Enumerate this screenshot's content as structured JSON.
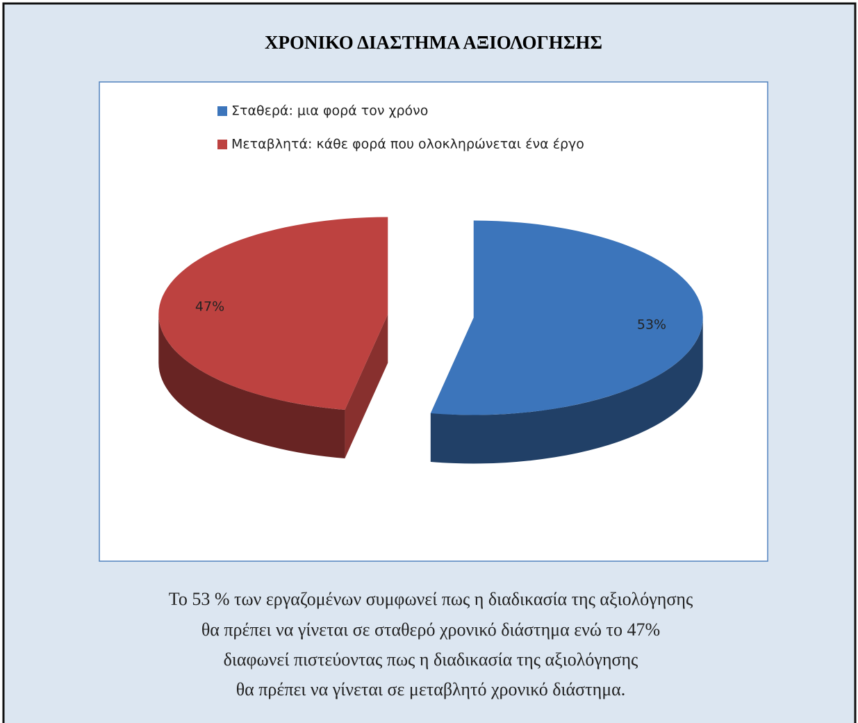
{
  "chart_data": {
    "type": "pie",
    "title": "ΧΡΟΝΙΚΟ ΔΙΑΣΤΗΜΑ ΑΞΙΟΛΟΓΗΣΗΣ",
    "categories": [
      "Σταθερά: μια φορά τον χρόνο",
      "Μεταβλητά: κάθε φορά που ολοκληρώνεται ένα έργο"
    ],
    "values": [
      53,
      47
    ],
    "value_labels": [
      "53%",
      "47%"
    ],
    "colors": [
      "#3c75bb",
      "#bd4240"
    ]
  },
  "caption": [
    "Το 53 % των εργαζομένων συμφωνεί πως η διαδικασία της αξιολόγησης",
    "θα πρέπει να γίνεται σε σταθερό χρονικό διάστημα ενώ το 47%",
    "διαφωνεί πιστεύοντας πως η διαδικασία της αξιολόγησης",
    "θα πρέπει να γίνεται σε μεταβλητό χρονικό διάστημα."
  ]
}
